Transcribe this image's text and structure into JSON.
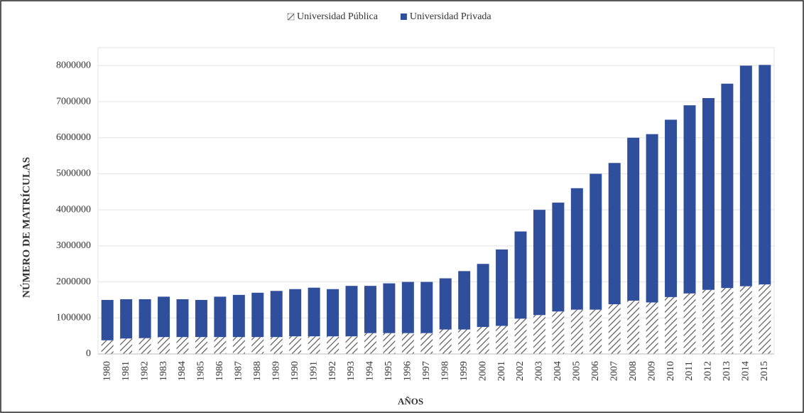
{
  "chart_data": {
    "type": "stacked_bar",
    "x_label": "AÑOS",
    "y_label": "NÚMERO DE MATRÍCULAS",
    "categories": [
      "1980",
      "1981",
      "1982",
      "1983",
      "1984",
      "1985",
      "1986",
      "1987",
      "1988",
      "1989",
      "1990",
      "1991",
      "1992",
      "1993",
      "1994",
      "1995",
      "1996",
      "1997",
      "1998",
      "1999",
      "2000",
      "2001",
      "2002",
      "2003",
      "2004",
      "2005",
      "2006",
      "2007",
      "2008",
      "2009",
      "2010",
      "2011",
      "2012",
      "2013",
      "2014",
      "2015"
    ],
    "series": [
      {
        "name": "Universidad Pública",
        "color": "#595959",
        "pattern": "diagonal-hatch",
        "values": [
          380000,
          430000,
          440000,
          470000,
          470000,
          470000,
          470000,
          470000,
          470000,
          470000,
          490000,
          490000,
          490000,
          490000,
          580000,
          580000,
          580000,
          580000,
          680000,
          680000,
          750000,
          780000,
          980000,
          1080000,
          1180000,
          1230000,
          1230000,
          1380000,
          1480000,
          1430000,
          1580000,
          1680000,
          1780000,
          1830000,
          1880000,
          1930000
        ]
      },
      {
        "name": "Universidad Privada",
        "color": "#2f4f9c",
        "values": [
          1120000,
          1090000,
          1080000,
          1120000,
          1050000,
          1030000,
          1120000,
          1170000,
          1230000,
          1280000,
          1310000,
          1350000,
          1310000,
          1400000,
          1310000,
          1380000,
          1420000,
          1420000,
          1420000,
          1620000,
          1750000,
          2120000,
          2420000,
          2920000,
          3020000,
          3370000,
          3770000,
          3920000,
          4520000,
          4670000,
          4920000,
          5220000,
          5320000,
          5670000,
          6120000,
          6090000
        ]
      }
    ],
    "ylim": [
      0,
      8500000
    ],
    "yticks": [
      0,
      1000000,
      2000000,
      3000000,
      4000000,
      5000000,
      6000000,
      7000000,
      8000000
    ],
    "grid": true
  }
}
